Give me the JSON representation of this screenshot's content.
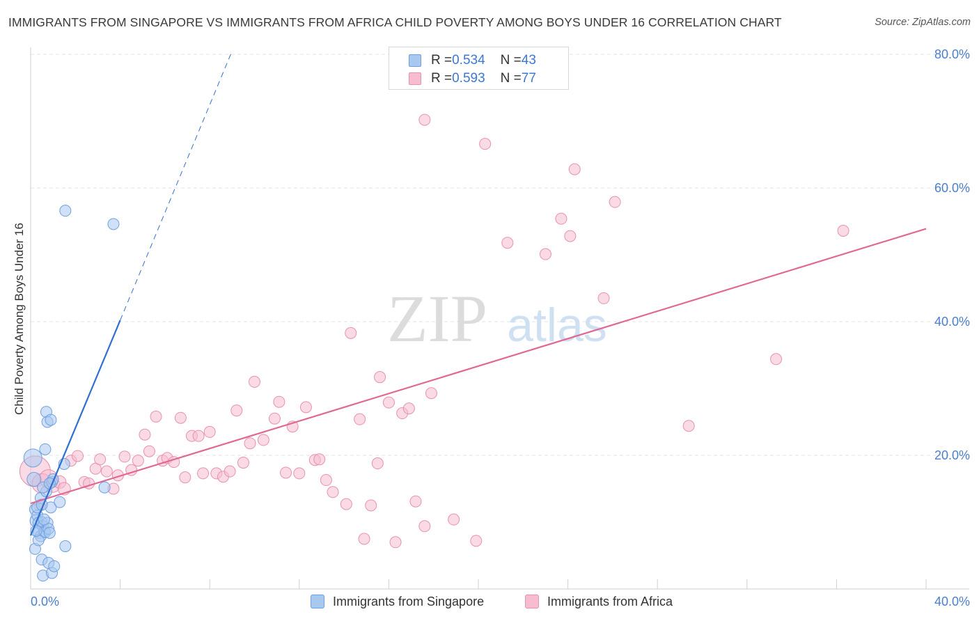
{
  "header": {
    "title": "IMMIGRANTS FROM SINGAPORE VS IMMIGRANTS FROM AFRICA CHILD POVERTY AMONG BOYS UNDER 16 CORRELATION CHART",
    "source": "Source: ZipAtlas.com"
  },
  "watermark": {
    "zip": "ZIP",
    "atlas": "atlas"
  },
  "legend": {
    "rows": [
      {
        "r_label": "R = ",
        "r_value": "0.534",
        "n_label": "N = ",
        "n_value": "43"
      },
      {
        "r_label": "R = ",
        "r_value": "0.593",
        "n_label": "N = ",
        "n_value": "77"
      }
    ]
  },
  "colors": {
    "singapore_fill": "#a9c8f0",
    "singapore_stroke": "#6d9fe0",
    "singapore_line": "#2f6fd0",
    "africa_fill": "#f6bdd0",
    "africa_stroke": "#e890ae",
    "africa_line": "#e06894",
    "grid": "#e3e3e3",
    "tick_text": "#4a7fd0"
  },
  "chart_data": {
    "type": "scatter",
    "title": "IMMIGRANTS FROM SINGAPORE VS IMMIGRANTS FROM AFRICA CHILD POVERTY AMONG BOYS UNDER 16 CORRELATION CHART",
    "xlabel": "",
    "ylabel": "Child Poverty Among Boys Under 16",
    "xlim": [
      0,
      40
    ],
    "ylim": [
      0,
      80
    ],
    "x_tick_labels": [
      "0.0%",
      "40.0%"
    ],
    "y_ticks": [
      20,
      40,
      60,
      80
    ],
    "y_tick_labels": [
      "20.0%",
      "40.0%",
      "60.0%",
      "80.0%"
    ],
    "grid": true,
    "series": [
      {
        "name": "Immigrants from Singapore",
        "r": 0.534,
        "n": 43,
        "trend": {
          "x0": 0,
          "y0": 8.0,
          "x1": 4.0,
          "y1": 40.2,
          "dash_to_x": 9.0,
          "dash_to_y": 80.5
        },
        "points": [
          [
            0.1,
            19.6,
            13
          ],
          [
            0.15,
            16.4,
            10
          ],
          [
            0.2,
            11.9,
            8
          ],
          [
            0.25,
            10.2,
            9
          ],
          [
            0.3,
            11.0,
            8
          ],
          [
            0.35,
            9.9,
            8
          ],
          [
            0.4,
            8.5,
            9
          ],
          [
            0.45,
            7.9,
            8
          ],
          [
            0.5,
            10.0,
            8
          ],
          [
            0.55,
            9.4,
            8
          ],
          [
            0.6,
            8.6,
            8
          ],
          [
            0.2,
            6.0,
            8
          ],
          [
            0.3,
            12.2,
            8
          ],
          [
            0.45,
            13.6,
            8
          ],
          [
            0.5,
            4.4,
            8
          ],
          [
            0.55,
            2.0,
            8
          ],
          [
            0.65,
            8.5,
            8
          ],
          [
            0.7,
            14.6,
            8
          ],
          [
            0.75,
            9.9,
            8
          ],
          [
            0.8,
            9.0,
            8
          ],
          [
            0.85,
            8.4,
            8
          ],
          [
            0.9,
            12.2,
            8
          ],
          [
            0.95,
            16.0,
            8
          ],
          [
            0.65,
            20.9,
            8
          ],
          [
            0.7,
            26.5,
            8
          ],
          [
            0.75,
            25.0,
            8
          ],
          [
            0.9,
            25.3,
            8
          ],
          [
            0.8,
            3.9,
            8
          ],
          [
            0.95,
            2.4,
            8
          ],
          [
            1.05,
            3.4,
            8
          ],
          [
            0.55,
            15.2,
            8
          ],
          [
            1.0,
            16.4,
            8
          ],
          [
            1.3,
            13.0,
            8
          ],
          [
            1.5,
            18.7,
            8
          ],
          [
            1.55,
            6.4,
            8
          ],
          [
            1.55,
            56.6,
            8
          ],
          [
            3.3,
            15.2,
            8
          ],
          [
            3.7,
            54.6,
            8
          ],
          [
            0.35,
            7.3,
            8
          ],
          [
            0.6,
            10.4,
            8
          ],
          [
            0.25,
            8.7,
            8
          ],
          [
            0.5,
            12.6,
            8
          ],
          [
            0.85,
            15.8,
            8
          ]
        ]
      },
      {
        "name": "Immigrants from Africa",
        "r": 0.593,
        "n": 77,
        "trend": {
          "x0": 0,
          "y0": 12.8,
          "x1": 40,
          "y1": 53.9
        },
        "points": [
          [
            0.2,
            17.6,
            22
          ],
          [
            0.5,
            15.8,
            14
          ],
          [
            0.8,
            16.5,
            13
          ],
          [
            1.0,
            15.5,
            10
          ],
          [
            1.3,
            16.0,
            9
          ],
          [
            1.5,
            15.0,
            9
          ],
          [
            1.8,
            19.2,
            8
          ],
          [
            2.1,
            19.9,
            8
          ],
          [
            2.4,
            16.0,
            8
          ],
          [
            2.6,
            15.8,
            8
          ],
          [
            2.9,
            18.0,
            8
          ],
          [
            3.1,
            19.4,
            8
          ],
          [
            3.4,
            17.6,
            8
          ],
          [
            3.7,
            15.0,
            8
          ],
          [
            3.9,
            17.0,
            8
          ],
          [
            4.2,
            19.8,
            8
          ],
          [
            4.5,
            17.8,
            8
          ],
          [
            4.8,
            19.2,
            8
          ],
          [
            5.1,
            23.1,
            8
          ],
          [
            5.3,
            20.6,
            8
          ],
          [
            5.6,
            25.8,
            8
          ],
          [
            5.9,
            19.2,
            8
          ],
          [
            6.1,
            19.6,
            8
          ],
          [
            6.4,
            19.0,
            8
          ],
          [
            6.7,
            25.6,
            8
          ],
          [
            6.9,
            16.7,
            8
          ],
          [
            7.2,
            22.9,
            8
          ],
          [
            7.5,
            22.9,
            8
          ],
          [
            7.7,
            17.3,
            8
          ],
          [
            8.0,
            23.5,
            8
          ],
          [
            8.3,
            17.3,
            8
          ],
          [
            8.6,
            16.8,
            8
          ],
          [
            8.9,
            17.6,
            8
          ],
          [
            9.2,
            26.7,
            8
          ],
          [
            9.5,
            18.9,
            8
          ],
          [
            9.8,
            21.8,
            8
          ],
          [
            10.0,
            31.0,
            8
          ],
          [
            10.4,
            22.3,
            8
          ],
          [
            10.9,
            25.5,
            8
          ],
          [
            11.1,
            28.0,
            8
          ],
          [
            11.4,
            17.4,
            8
          ],
          [
            11.7,
            24.3,
            8
          ],
          [
            12.0,
            17.3,
            8
          ],
          [
            12.3,
            27.2,
            8
          ],
          [
            12.7,
            19.3,
            8
          ],
          [
            12.9,
            19.4,
            8
          ],
          [
            13.2,
            16.3,
            8
          ],
          [
            13.5,
            14.5,
            8
          ],
          [
            14.1,
            12.7,
            8
          ],
          [
            14.3,
            38.3,
            8
          ],
          [
            14.7,
            25.4,
            8
          ],
          [
            14.9,
            7.5,
            8
          ],
          [
            15.2,
            12.5,
            8
          ],
          [
            15.5,
            18.8,
            8
          ],
          [
            15.6,
            31.7,
            8
          ],
          [
            16.0,
            27.9,
            8
          ],
          [
            16.3,
            7.0,
            8
          ],
          [
            16.6,
            26.3,
            8
          ],
          [
            16.9,
            27.0,
            8
          ],
          [
            17.2,
            13.1,
            8
          ],
          [
            17.6,
            9.4,
            8
          ],
          [
            17.6,
            70.2,
            8
          ],
          [
            17.9,
            29.3,
            8
          ],
          [
            18.9,
            10.4,
            8
          ],
          [
            19.9,
            7.2,
            8
          ],
          [
            20.3,
            66.6,
            8
          ],
          [
            21.3,
            51.8,
            8
          ],
          [
            23.0,
            50.1,
            8
          ],
          [
            23.7,
            55.4,
            8
          ],
          [
            24.1,
            52.8,
            8
          ],
          [
            24.3,
            62.8,
            8
          ],
          [
            25.6,
            43.5,
            8
          ],
          [
            26.1,
            57.9,
            8
          ],
          [
            29.4,
            24.4,
            8
          ],
          [
            33.3,
            34.4,
            8
          ],
          [
            36.3,
            53.6,
            8
          ],
          [
            0.4,
            12.5,
            8
          ]
        ]
      }
    ]
  },
  "bottom_legend": {
    "singapore": "Immigrants from Singapore",
    "africa": "Immigrants from Africa"
  }
}
